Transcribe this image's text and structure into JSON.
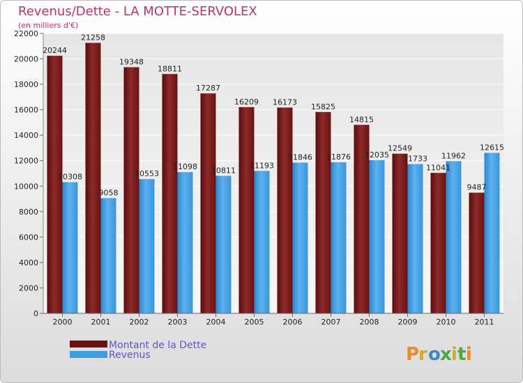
{
  "chart_data": {
    "type": "bar",
    "title": "Revenus/Dette - LA MOTTE-SERVOLEX",
    "subtitle": "(en milliers d'€)",
    "categories": [
      "2000",
      "2001",
      "2002",
      "2003",
      "2004",
      "2005",
      "2006",
      "2007",
      "2008",
      "2009",
      "2010",
      "2011"
    ],
    "series": [
      {
        "name": "Montant de la Dette",
        "color": "#7a1a1a",
        "values": [
          20244,
          21258,
          19348,
          18811,
          17287,
          16209,
          16173,
          15825,
          14815,
          12549,
          11041,
          9487
        ]
      },
      {
        "name": "Revenus",
        "color": "#3e9de3",
        "values": [
          10308,
          9058,
          10553,
          11098,
          10811,
          11193,
          11846,
          11876,
          12035,
          11733,
          11962,
          12615
        ]
      }
    ],
    "ylim": [
      0,
      22000
    ],
    "yticks": [
      0,
      2000,
      4000,
      6000,
      8000,
      10000,
      12000,
      14000,
      16000,
      18000,
      20000,
      22000
    ],
    "grid": true,
    "legend_position": "bottom-left",
    "title_color": "#c0306a",
    "legend_text_color": "#5a56d6"
  },
  "logo": {
    "text": "Proxiti"
  }
}
